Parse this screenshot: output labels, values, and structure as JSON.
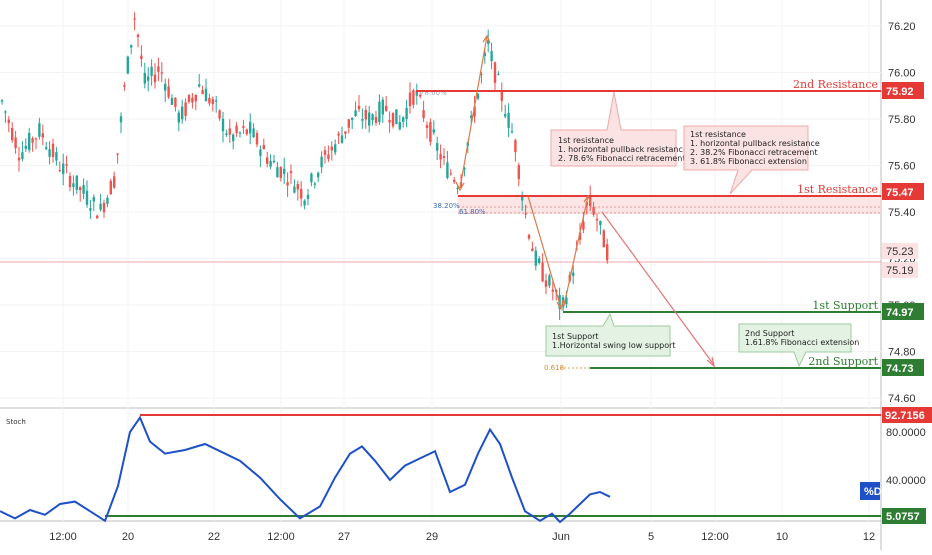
{
  "chart_data": {
    "type": "candlestick",
    "instrument_note": "price chart with stochastic oscillator",
    "price_axis": {
      "ticks": [
        "76.20",
        "76.00",
        "75.80",
        "75.60",
        "75.40",
        "75.20",
        "75.00",
        "74.80",
        "74.60"
      ],
      "range": [
        74.56,
        76.32
      ]
    },
    "stoch_axis": {
      "ticks": [
        "80.0000",
        "40.0000"
      ],
      "range": [
        0,
        100
      ]
    },
    "x_ticks": [
      "12:00",
      "20",
      "22",
      "12:00",
      "27",
      "29",
      "Jun",
      "5",
      "12:00",
      "10",
      "12"
    ],
    "levels": [
      {
        "name": "2nd Resistance",
        "value": 75.92,
        "tag": "75.92",
        "color": "#e53935"
      },
      {
        "name": "1st Resistance",
        "value": 75.47,
        "tag": "75.47",
        "color": "#e53935"
      },
      {
        "name": "1st Support",
        "value": 74.97,
        "tag": "74.97",
        "color": "#2e7d32"
      },
      {
        "name": "2nd Support",
        "value": 74.73,
        "tag": "74.73",
        "color": "#2e7d32"
      }
    ],
    "price_tags": {
      "high": "75.23",
      "last": "75.19"
    },
    "fib_labels": {
      "top": "78.60%",
      "mid": "38.20%",
      "inner": "61.80%",
      "ext": "0.618"
    },
    "stoch": {
      "label": "Stoch",
      "upper": {
        "value": 92.7156,
        "tag": "92.7156"
      },
      "lower": {
        "value": 5.0757,
        "tag": "5.0757"
      },
      "legend": "%D"
    },
    "annotations": [
      {
        "lines": [
          "1st resistance",
          "1. horizontal pullback resistance",
          "2. 78.6% Fibonacci retracement"
        ]
      },
      {
        "lines": [
          "1st resistance",
          "1. horizontal pullback resistance",
          "2. 38.2% Fibonacci retracement",
          "3. 61.8% Fibonacci extension"
        ]
      },
      {
        "lines": [
          "1st Support",
          "1.Horizontal swing low support"
        ]
      },
      {
        "lines": [
          "2nd Support",
          "1.61.8% Fibonacci extension"
        ]
      }
    ],
    "colors": {
      "up": "#26a69a",
      "down": "#ef5350",
      "stoch_line": "#1e50c8",
      "resist": "#e53935",
      "support": "#2e7d32"
    }
  }
}
